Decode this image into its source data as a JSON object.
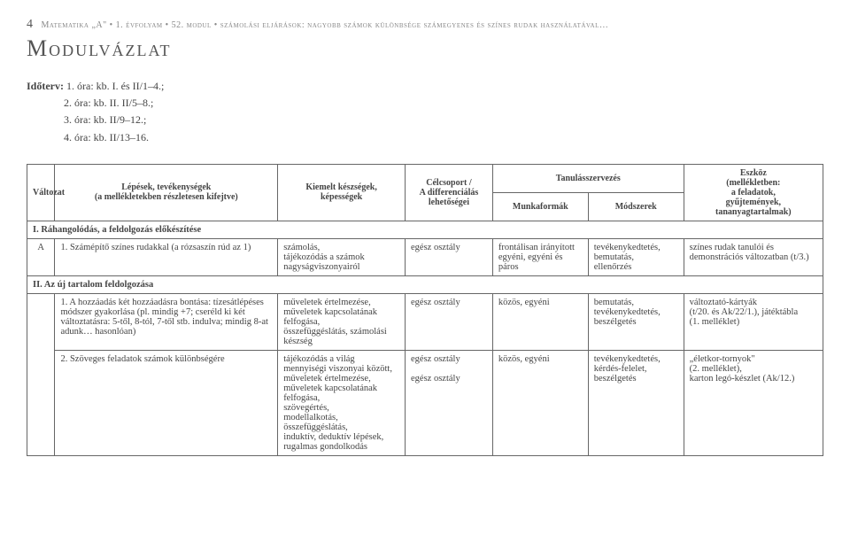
{
  "header": {
    "page_num": "4",
    "breadcrumb": "Matematika „A\" • 1. évfolyam • 52. modul • számolási eljárások: nagyobb számok különbsége számegyenes és színes rudak használatával…"
  },
  "title": "Modulvázlat",
  "schedule": {
    "label": "Időterv:",
    "lines": [
      "1. óra: kb. I. és II/1–4.;",
      "2. óra: kb. II. II/5–8.;",
      "3. óra: kb. II/9–12.;",
      "4. óra: kb. II/13–16."
    ]
  },
  "table": {
    "head": {
      "col0": "Változat",
      "col1": "Lépések, tevékenységek\n(a mellékletekben részletesen kifejtve)",
      "col2": "Kiemelt készségek,\nképességek",
      "col3": "Célcsoport /\nA differenciálás\nlehetőségei",
      "col4_group": "Tanulásszervezés",
      "col4a": "Munkaformák",
      "col4b": "Módszerek",
      "col5": "Eszköz\n(mellékletben:\na feladatok,\ngyűjtemények,\ntananyagtartalmak)"
    },
    "section1": "I. Ráhangolódás, a feldolgozás előkészítése",
    "row_a": {
      "variant": "A",
      "activity": "1.  Számépítő színes rudakkal (a rózsaszín rúd az 1)",
      "skills": "számolás,\ntájékozódás a számok nagyságviszonyairól",
      "target": "egész osztály",
      "forms": "frontálisan irányított egyéni, egyéni és páros",
      "methods": "tevékenykedtetés,\nbemutatás,\nellenőrzés",
      "tools": "színes rudak tanulói és demonstrációs változatban (t/3.)"
    },
    "section2": "II. Az új tartalom feldolgozása",
    "row_1": {
      "activity": "1.  A hozzáadás két hozzáadásra bontása: tízesátlépéses módszer gyakorlása (pl. mindig +7; cseréld ki két változtatásra: 5-től, 8-tól, 7-től stb. indulva; mindig 8-at adunk… hasonlóan)",
      "skills": "műveletek értelmezése, műveletek kapcsolatának felfogása,\nösszefüggéslátás, számolási készség",
      "target": "egész osztály",
      "forms": "közös, egyéni",
      "methods": "bemutatás,\ntevékenykedtetés,\nbeszélgetés",
      "tools": "változtató-kártyák\n(t/20. és Ak/22/1.), játéktábla\n(1. melléklet)"
    },
    "row_2": {
      "activity": "2.  Szöveges feladatok számok különbségére",
      "skills": "tájékozódás a világ mennyiségi viszonyai között, műveletek értelmezése, műveletek kapcsolatának felfogása,\nszövegértés,\nmodellalkotás,\nösszefüggéslátás,\ninduktív, deduktív lépések, rugalmas gondolkodás",
      "target": "egész osztály\n\negész osztály",
      "forms": "közös, egyéni",
      "methods": "tevékenykedtetés,\nkérdés-felelet,\nbeszélgetés",
      "tools": "„életkor-tornyok\"\n(2. melléklet),\nkarton legó-készlet (Ak/12.)"
    }
  }
}
